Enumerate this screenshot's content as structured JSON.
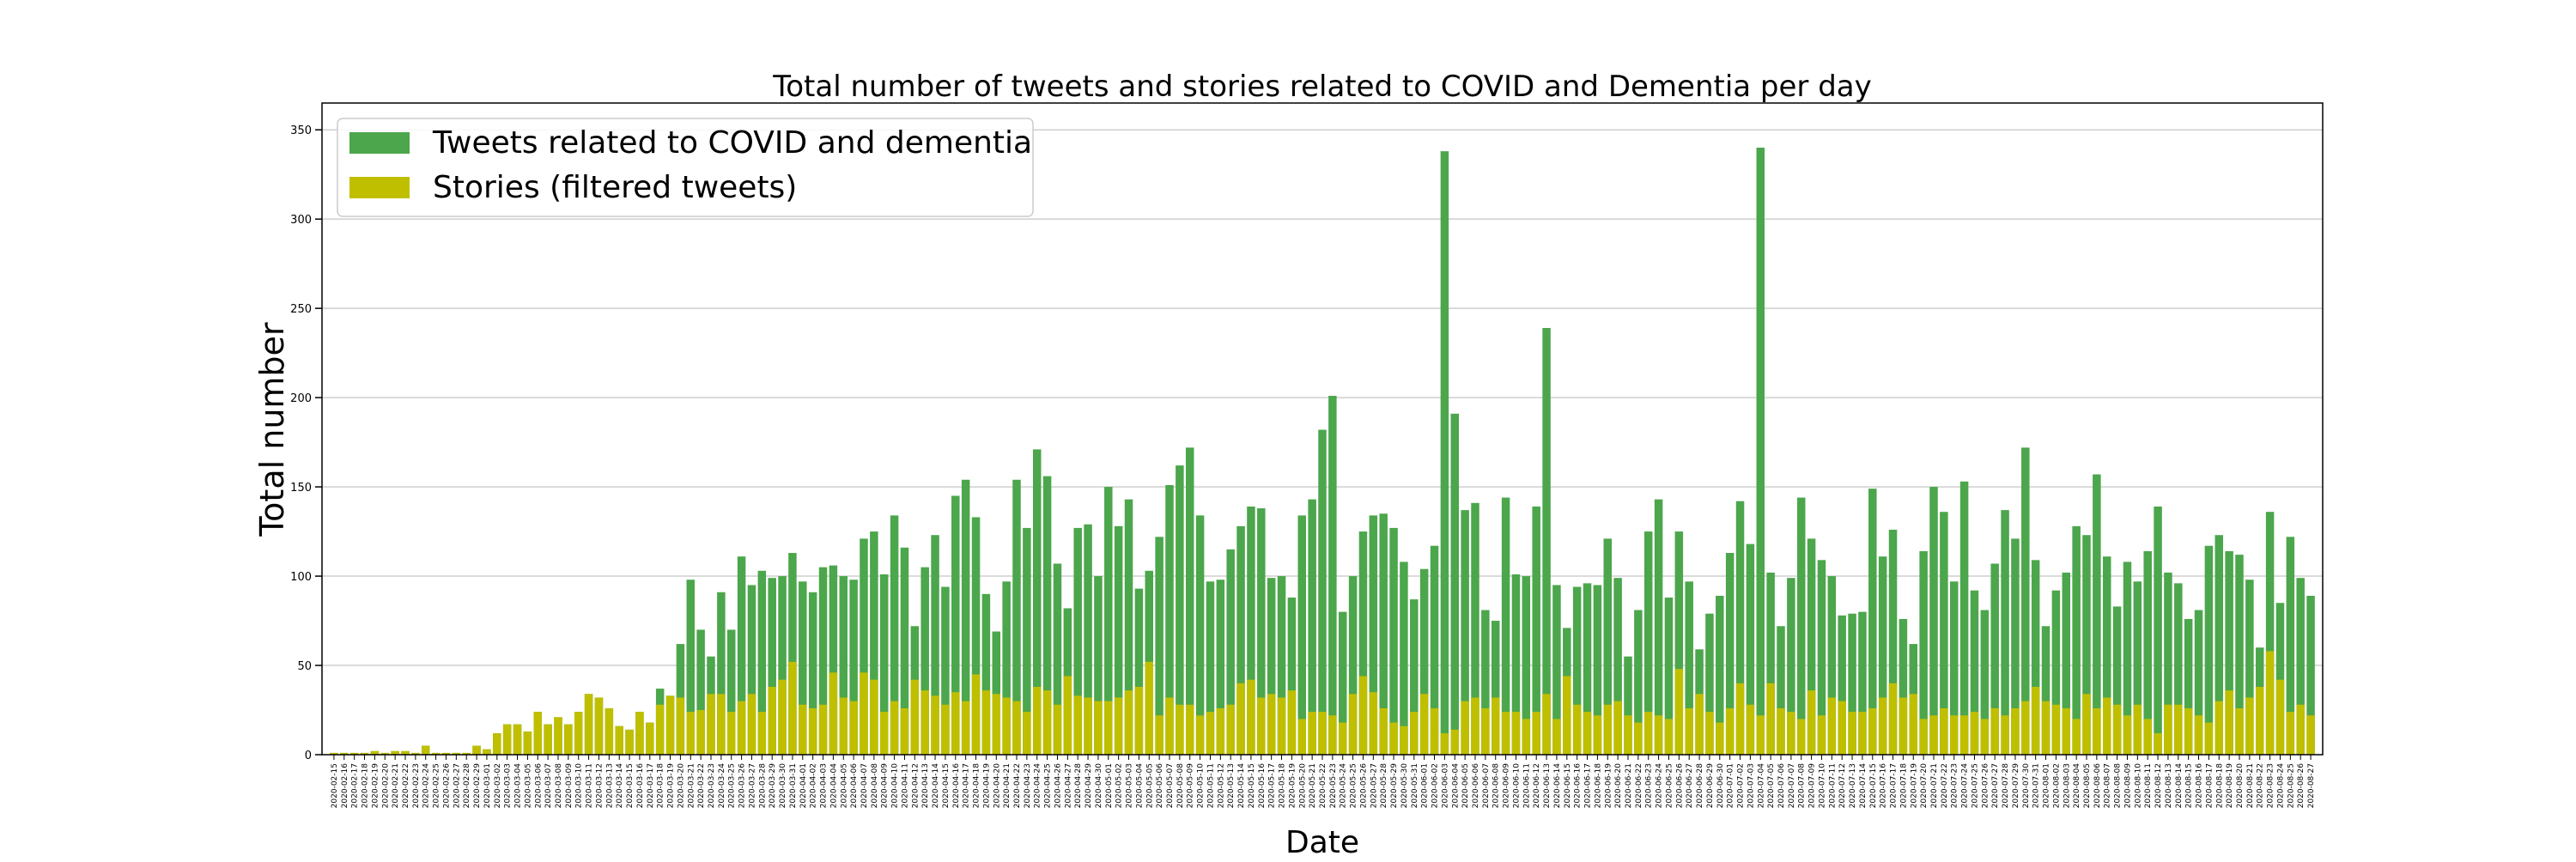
{
  "chart_data": {
    "type": "bar",
    "title": "Total number of tweets and stories related to COVID and Dementia per day",
    "xlabel": "Date",
    "ylabel": "Total number",
    "ylim": [
      0,
      365
    ],
    "yticks": [
      0,
      50,
      100,
      150,
      200,
      250,
      300,
      350
    ],
    "grid": "horizontal",
    "legend_position": "top-left",
    "start_date": "2020-02-15",
    "series": [
      {
        "name": "Tweets related to COVID and dementia",
        "color": "#4ca64c",
        "values": [
          1,
          1,
          1,
          1,
          2,
          1,
          2,
          2,
          1,
          5,
          1,
          1,
          1,
          1,
          5,
          3,
          12,
          17,
          17,
          13,
          24,
          17,
          21,
          17,
          24,
          34,
          32,
          26,
          16,
          14,
          24,
          18,
          37,
          33,
          62,
          98,
          70,
          55,
          91,
          70,
          111,
          95,
          103,
          99,
          100,
          113,
          97,
          91,
          105,
          106,
          100,
          98,
          121,
          125,
          101,
          134,
          116,
          72,
          105,
          123,
          94,
          145,
          154,
          133,
          90,
          69,
          97,
          154,
          127,
          171,
          156,
          107,
          82,
          127,
          129,
          100,
          150,
          128,
          143,
          93,
          103,
          122,
          151,
          162,
          172,
          134,
          97,
          98,
          115,
          128,
          139,
          138,
          99,
          100,
          88,
          134,
          143,
          182,
          201,
          80,
          100,
          125,
          134,
          135,
          127,
          108,
          87,
          104,
          117,
          338,
          191,
          137,
          141,
          81,
          75,
          144,
          101,
          100,
          139,
          239,
          95,
          71,
          94,
          96,
          95,
          121,
          99,
          55,
          81,
          125,
          143,
          88,
          125,
          97,
          59,
          79,
          89,
          113,
          142,
          118,
          340,
          102,
          72,
          99,
          144,
          121,
          109,
          100,
          78,
          79,
          80,
          149,
          111,
          126,
          76,
          62,
          114,
          150,
          136,
          97,
          153,
          92,
          81,
          107,
          137,
          121,
          172,
          109,
          72,
          92,
          102,
          128,
          123,
          157,
          111,
          83,
          108,
          97,
          114,
          139,
          102,
          96,
          76,
          81,
          117,
          123,
          114,
          112,
          98,
          60,
          136,
          85,
          122,
          99,
          89
        ]
      },
      {
        "name": "Stories (filtered tweets)",
        "color": "#bfbf00",
        "values": [
          1,
          1,
          1,
          1,
          2,
          1,
          2,
          2,
          1,
          5,
          1,
          1,
          1,
          1,
          5,
          3,
          12,
          17,
          17,
          13,
          24,
          17,
          21,
          17,
          24,
          34,
          32,
          26,
          16,
          14,
          24,
          18,
          28,
          33,
          32,
          24,
          25,
          34,
          34,
          24,
          30,
          34,
          24,
          38,
          42,
          52,
          28,
          26,
          28,
          46,
          32,
          30,
          46,
          42,
          24,
          30,
          26,
          42,
          36,
          33,
          28,
          35,
          30,
          45,
          36,
          34,
          32,
          30,
          24,
          38,
          36,
          28,
          44,
          33,
          32,
          30,
          30,
          32,
          36,
          38,
          52,
          22,
          32,
          28,
          28,
          22,
          24,
          26,
          28,
          40,
          42,
          32,
          34,
          32,
          36,
          20,
          24,
          24,
          22,
          18,
          34,
          44,
          35,
          26,
          18,
          16,
          24,
          34,
          26,
          12,
          14,
          30,
          32,
          26,
          32,
          24,
          24,
          20,
          24,
          34,
          20,
          44,
          28,
          24,
          22,
          28,
          30,
          22,
          18,
          24,
          22,
          20,
          48,
          26,
          34,
          24,
          18,
          26,
          40,
          28,
          22,
          40,
          26,
          24,
          20,
          36,
          22,
          32,
          30,
          24,
          24,
          26,
          32,
          40,
          32,
          34,
          20,
          22,
          26,
          22,
          22,
          24,
          20,
          26,
          22,
          26,
          30,
          38,
          30,
          28,
          26,
          20,
          34,
          26,
          32,
          28,
          22,
          28,
          20,
          12,
          28,
          28,
          26,
          22,
          18,
          30,
          36,
          26,
          32,
          38,
          58,
          42,
          24,
          28,
          22
        ]
      }
    ]
  }
}
